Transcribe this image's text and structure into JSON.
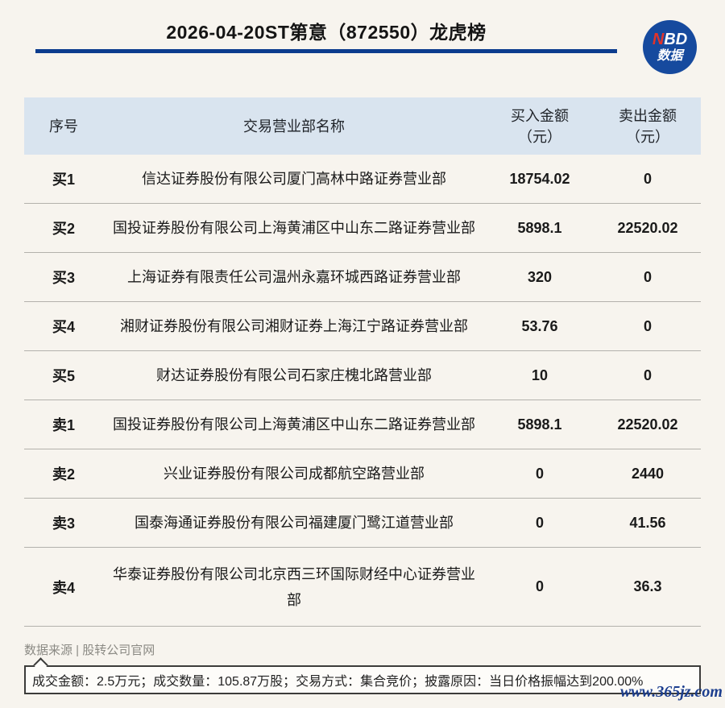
{
  "header": {
    "title": "2026-04-20ST第意（872550）龙虎榜",
    "accent_color": "#0c3c8e",
    "logo": {
      "n": "N",
      "bd": "BD",
      "line2": "数据",
      "bg_color": "#164a9e",
      "n_color": "#e3332a"
    }
  },
  "table": {
    "header_bg": "#d9e4ef",
    "headers": {
      "seq": "序号",
      "name": "交易营业部名称",
      "buy_line1": "买入金额",
      "buy_line2": "（元）",
      "sell_line1": "卖出金额",
      "sell_line2": "（元）"
    }
  },
  "footer": {
    "source": "数据来源 | 股转公司官网",
    "note": "成交金额：2.5万元；成交数量：105.87万股；交易方式：集合竞价；披露原因：当日价格振幅达到200.00%",
    "watermark": "www.365jz.com"
  },
  "chart_data": {
    "type": "table",
    "title": "2026-04-20ST第意（872550）龙虎榜",
    "columns": [
      "序号",
      "交易营业部名称",
      "买入金额（元）",
      "卖出金额（元）"
    ],
    "rows": [
      [
        "买1",
        "信达证券股份有限公司厦门高林中路证券营业部",
        18754.02,
        0
      ],
      [
        "买2",
        "国投证券股份有限公司上海黄浦区中山东二路证券营业部",
        5898.1,
        22520.02
      ],
      [
        "买3",
        "上海证券有限责任公司温州永嘉环城西路证券营业部",
        320,
        0
      ],
      [
        "买4",
        "湘财证券股份有限公司湘财证券上海江宁路证券营业部",
        53.76,
        0
      ],
      [
        "买5",
        "财达证券股份有限公司石家庄槐北路营业部",
        10,
        0
      ],
      [
        "卖1",
        "国投证券股份有限公司上海黄浦区中山东二路证券营业部",
        5898.1,
        22520.02
      ],
      [
        "卖2",
        "兴业证券股份有限公司成都航空路营业部",
        0,
        2440
      ],
      [
        "卖3",
        "国泰海通证券股份有限公司福建厦门鹭江道营业部",
        0,
        41.56
      ],
      [
        "卖4",
        "华泰证券股份有限公司北京西三环国际财经中心证券营业部",
        0,
        36.3
      ]
    ],
    "source": "股转公司官网",
    "note": "成交金额：2.5万元；成交数量：105.87万股；交易方式：集合竞价；披露原因：当日价格振幅达到200.00%"
  }
}
